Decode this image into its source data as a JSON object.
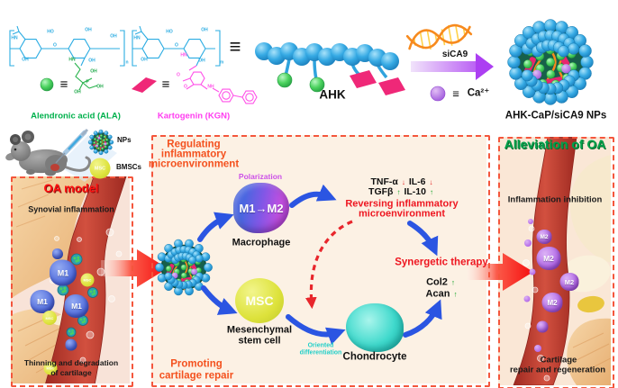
{
  "glyphs": {
    "equiv": "≡",
    "up": "↑",
    "down": "↓"
  },
  "scheme": {
    "ala_label": "Alendronic acid (ALA)",
    "kgn_label": "Kartogenin (KGN)",
    "ahk_label": "AHK",
    "sica9_label": "siCA9",
    "ca_label": "Ca²⁺",
    "np_label": "AHK-CaP/siCA9 NPs",
    "atoms": [
      "HN",
      "HO",
      "OH",
      "OH",
      "O",
      "OH",
      "OH",
      "n",
      "HN",
      "HO",
      "OH",
      "O",
      "OH",
      "OH",
      "m",
      "HN",
      "OH",
      "P",
      "OH",
      "OH",
      "HN",
      "O",
      "O",
      "NH"
    ]
  },
  "injection": {
    "nps_label": "NPs",
    "bmscs_label": "BMSCs",
    "msc_text": "MSC"
  },
  "left_panel": {
    "title": "OA model",
    "subtitle": "Synovial inflammation",
    "caption": [
      "Thinning and degradation",
      "of cartilage"
    ],
    "m1_label": "M1",
    "msc_text": "MSC"
  },
  "middle_panel": {
    "title": [
      "Regulating",
      "inflammatory",
      "microenvironment"
    ],
    "polarization": "Polarization",
    "macrophage_text": "M1→M2",
    "macrophage_label": "Macrophage",
    "cytokines_row1": [
      {
        "t": "TNF-α",
        "d": "down"
      },
      {
        "t": "IL-6",
        "d": "down"
      }
    ],
    "cytokines_row2": [
      {
        "t": "TGFβ",
        "d": "up"
      },
      {
        "t": "IL-10",
        "d": "up"
      }
    ],
    "reversing": [
      "Reversing inflammatory",
      "microenvironment"
    ],
    "synergetic": "Synergetic therapy",
    "markers": [
      {
        "t": "Col2",
        "d": "up"
      },
      {
        "t": "Acan",
        "d": "up"
      }
    ],
    "msc_text": "MSC",
    "msc_label": [
      "Mesenchymal",
      "stem cell"
    ],
    "oriented": [
      "Oriented",
      "differentiation"
    ],
    "chondrocyte_label": "Chondrocyte",
    "promoting": [
      "Promoting",
      "cartilage repair"
    ]
  },
  "right_panel": {
    "title": "Alleviation of OA",
    "subtitle": "Inflammation inhibition",
    "caption": [
      "Cartilage",
      "repair and regeneration"
    ],
    "m2_label": "M2"
  },
  "colors": {
    "accent_orange": "#F4511E",
    "label_red": "#EE1620",
    "title_green": "#00A14B",
    "ala_green": "#00B14C",
    "kgn_magenta": "#FF3DF0",
    "polarization_purple": "#CC51E8",
    "oriented_cyan": "#21CFC9",
    "arrow_blue": "#2B55E2",
    "bead_blue": "#35AEE6",
    "border_dashed": "#F4563C"
  }
}
